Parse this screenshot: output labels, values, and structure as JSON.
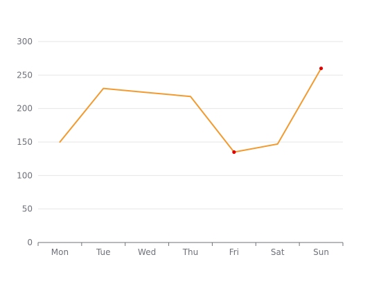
{
  "chart_data": {
    "type": "line",
    "title": "",
    "xlabel": "",
    "ylabel": "",
    "categories": [
      "Mon",
      "Tue",
      "Wed",
      "Thu",
      "Fri",
      "Sat",
      "Sun"
    ],
    "series": [
      {
        "values": [
          150,
          230,
          224,
          218,
          135,
          147,
          260
        ],
        "color": "#f39a2f"
      }
    ],
    "highlighted_points": [
      {
        "category": "Fri",
        "value": 135,
        "color": "#e00000"
      },
      {
        "category": "Sun",
        "value": 260,
        "color": "#e00000"
      }
    ],
    "ylim": [
      0,
      300
    ],
    "yticks": [
      "0",
      "50",
      "100",
      "150",
      "200",
      "250",
      "300"
    ],
    "grid": true,
    "legend": "none"
  }
}
